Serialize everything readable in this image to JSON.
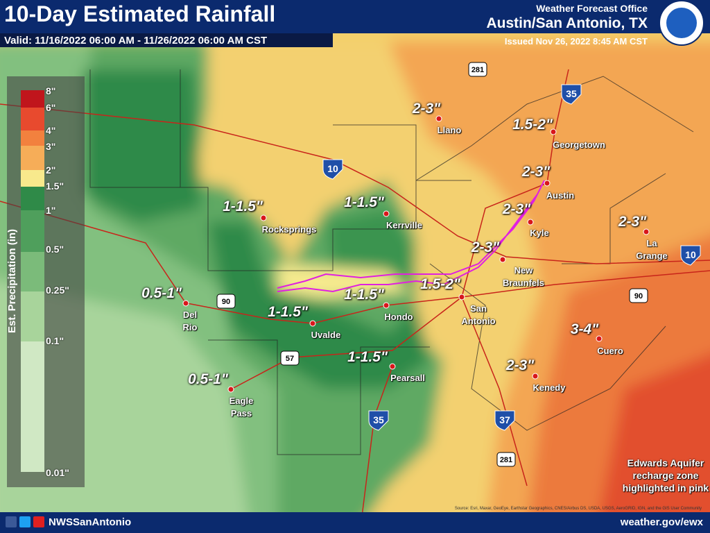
{
  "header": {
    "title": "10-Day Estimated Rainfall",
    "valid": "Valid: 11/16/2022 06:00 AM - 11/26/2022 06:00 AM CST",
    "office": "Weather Forecast Office",
    "location": "Austin/San Antonio, TX",
    "issued": "Issued Nov 26, 2022 8:45 AM CST"
  },
  "legend": {
    "title": "Est. Precipitation (in)",
    "labels": [
      "8\"",
      "6\"",
      "4\"",
      "3\"",
      "2\"",
      "1.5\"",
      "1\"",
      "0.5\"",
      "0.25\"",
      "0.1\"",
      "0.01\""
    ]
  },
  "map": {
    "rainfall_labels": [
      "2-3\"",
      "1.5-2\"",
      "2-3\"",
      "2-3\"",
      "2-3\"",
      "2-3\"",
      "1-1.5\"",
      "1-1.5\"",
      "1-1.5\"",
      "1.5-2\"",
      "0.5-1\"",
      "1-1.5\"",
      "1-1.5\"",
      "0.5-1\"",
      "3-4\"",
      "2-3\""
    ],
    "cities": [
      "Llano",
      "Georgetown",
      "Austin",
      "Kyle",
      "La Grange",
      "New Braunfels",
      "Rocksprings",
      "Kerrville",
      "Uvalde",
      "Hondo",
      "San Antonio",
      "Del Rio",
      "Pearsall",
      "Eagle Pass",
      "Cuero",
      "Kenedy"
    ],
    "highways": [
      "281",
      "35",
      "10",
      "10",
      "90",
      "90",
      "57",
      "35",
      "37",
      "281"
    ],
    "note": "Edwards Aquifer recharge zone highlighted in pink",
    "attribution": "Source: Esri, Maxar, GeoEye, Earthstar Geographics, CNES/Airbus DS, USDA, USGS, AeroGRID, IGN, and the GIS User Community"
  },
  "footer": {
    "social": "NWSSanAntonio",
    "website": "weather.gov/ewx"
  }
}
